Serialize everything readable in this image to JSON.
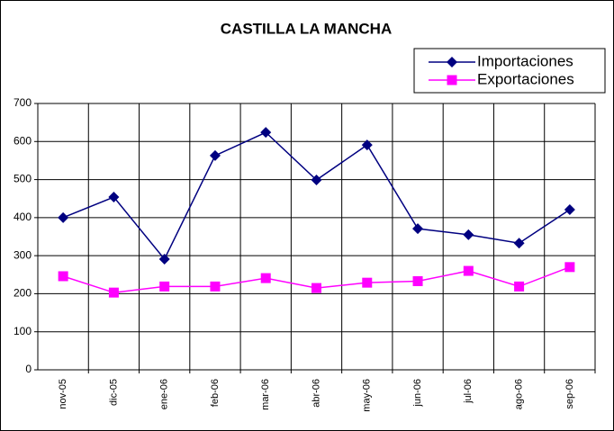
{
  "chart_data": {
    "type": "line",
    "title": "CASTILLA LA MANCHA",
    "categories": [
      "nov-05",
      "dic-05",
      "ene-06",
      "feb-06",
      "mar-06",
      "abr-06",
      "may-06",
      "jun-06",
      "jul-06",
      "ago-06",
      "sep-06"
    ],
    "series": [
      {
        "name": "Importaciones",
        "color": "#000080",
        "marker": "diamond",
        "values": [
          400,
          454,
          291,
          563,
          624,
          499,
          591,
          371,
          355,
          333,
          421
        ]
      },
      {
        "name": "Exportaciones",
        "color": "#ff00ff",
        "marker": "square",
        "values": [
          246,
          203,
          219,
          219,
          241,
          215,
          229,
          233,
          260,
          219,
          270
        ]
      }
    ],
    "ylim": [
      0,
      700
    ],
    "yticks": [
      0,
      100,
      200,
      300,
      400,
      500,
      600,
      700
    ],
    "grid": true,
    "legend": "top-right"
  }
}
